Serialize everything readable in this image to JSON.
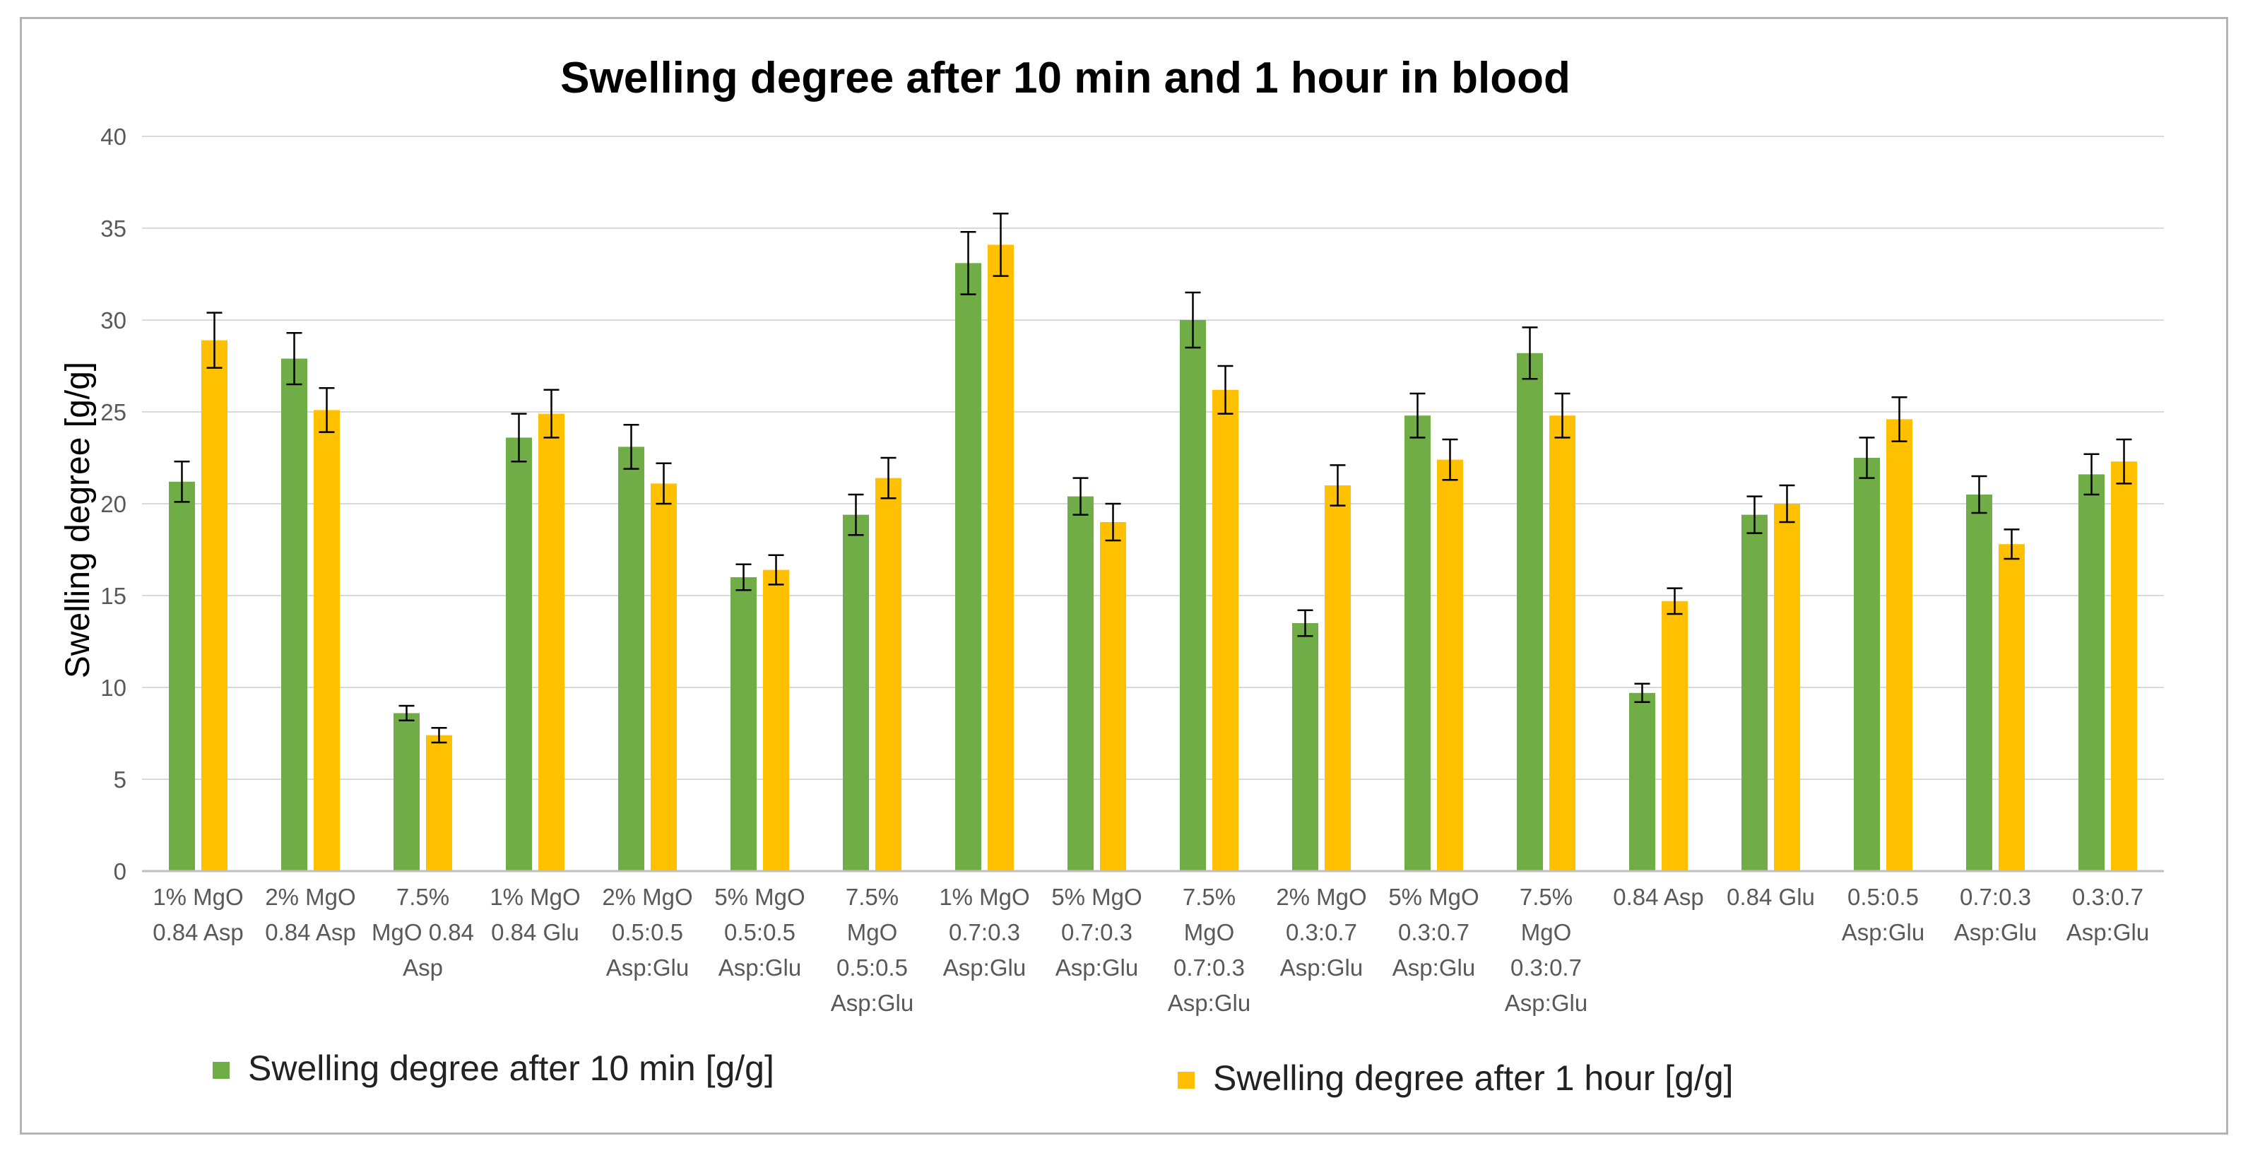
{
  "chart_data": {
    "type": "bar",
    "title": "Swelling degree after 10 min and 1 hour in blood",
    "xlabel": "",
    "ylabel": "Swelling degree [g/g]",
    "ylim": [
      0,
      40
    ],
    "yticks": [
      "0",
      "5",
      "10",
      "15",
      "20",
      "25",
      "30",
      "35",
      "40"
    ],
    "grid": true,
    "legend_position": "bottom",
    "categories": [
      [
        "1% MgO",
        "0.84 Asp"
      ],
      [
        "2% MgO",
        "0.84 Asp"
      ],
      [
        "7.5%",
        "MgO 0.84",
        "Asp"
      ],
      [
        "1% MgO",
        "0.84 Glu"
      ],
      [
        "2% MgO",
        "0.5:0.5",
        "Asp:Glu"
      ],
      [
        "5% MgO",
        "0.5:0.5",
        "Asp:Glu"
      ],
      [
        "7.5%",
        "MgO",
        "0.5:0.5",
        "Asp:Glu"
      ],
      [
        "1% MgO",
        "0.7:0.3",
        "Asp:Glu"
      ],
      [
        "5% MgO",
        "0.7:0.3",
        "Asp:Glu"
      ],
      [
        "7.5%",
        "MgO",
        "0.7:0.3",
        "Asp:Glu"
      ],
      [
        "2% MgO",
        "0.3:0.7",
        "Asp:Glu"
      ],
      [
        "5% MgO",
        "0.3:0.7",
        "Asp:Glu"
      ],
      [
        "7.5%",
        "MgO",
        "0.3:0.7",
        "Asp:Glu"
      ],
      [
        "0.84 Asp"
      ],
      [
        "0.84 Glu"
      ],
      [
        "0.5:0.5",
        "Asp:Glu"
      ],
      [
        "0.7:0.3",
        "Asp:Glu"
      ],
      [
        "0.3:0.7",
        "Asp:Glu"
      ]
    ],
    "series": [
      {
        "name": "Swelling degree after 10 min [g/g]",
        "color": "#70ad47",
        "values": [
          21.2,
          27.9,
          8.6,
          23.6,
          23.1,
          16.0,
          19.4,
          33.1,
          20.4,
          30.0,
          13.5,
          24.8,
          28.2,
          9.7,
          19.4,
          22.5,
          20.5,
          21.6
        ],
        "errors": [
          1.1,
          1.4,
          0.4,
          1.3,
          1.2,
          0.7,
          1.1,
          1.7,
          1.0,
          1.5,
          0.7,
          1.2,
          1.4,
          0.5,
          1.0,
          1.1,
          1.0,
          1.1
        ]
      },
      {
        "name": "Swelling degree after 1 hour [g/g]",
        "color": "#ffc000",
        "values": [
          28.9,
          25.1,
          7.4,
          24.9,
          21.1,
          16.4,
          21.4,
          34.1,
          19.0,
          26.2,
          21.0,
          22.4,
          24.8,
          14.7,
          20.0,
          24.6,
          17.8,
          22.3
        ],
        "errors": [
          1.5,
          1.2,
          0.4,
          1.3,
          1.1,
          0.8,
          1.1,
          1.7,
          1.0,
          1.3,
          1.1,
          1.1,
          1.2,
          0.7,
          1.0,
          1.2,
          0.8,
          1.2
        ]
      }
    ]
  }
}
